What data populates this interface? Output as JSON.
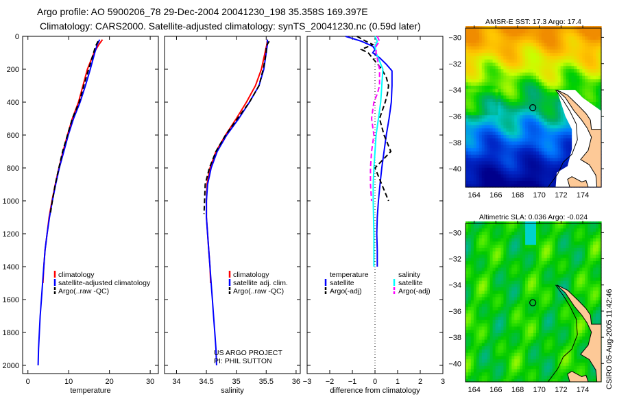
{
  "title_line1": "Argo profile: AO 5900206_78 29-Dec-2004 20041230_198 35.358S 169.397E",
  "title_line2": "Climatology: CARS2000. Satellite-adjusted climatology: synTS_20041230.nc (0.59d later)",
  "side_label": "CSIRO 05-Aug-2005 11:42:46",
  "colors": {
    "climatology": "#ff0000",
    "satellite": "#0000ff",
    "argo": "#000000",
    "sal_satellite": "#00ffff",
    "sal_argo": "#ff00ff"
  },
  "chart_data": [
    {
      "type": "line",
      "xlabel": "temperature",
      "ylabel": "depth",
      "xlim": [
        -1.3,
        32
      ],
      "ylim": [
        2050,
        0
      ],
      "xticks": [
        0,
        10,
        20,
        30
      ],
      "yticks": [
        0,
        200,
        400,
        600,
        800,
        1000,
        1200,
        1400,
        1600,
        1800,
        2000
      ],
      "legend": [
        "climatology",
        "satellite-adjusted climatology",
        "Argo(..raw -QC)"
      ],
      "series": [
        {
          "name": "climatology",
          "style": "solid",
          "color": "#ff0000",
          "depth": [
            20,
            50,
            100,
            200,
            300,
            400,
            500,
            600,
            700,
            800,
            900,
            1000,
            1100,
            1200,
            1300,
            1400,
            1500
          ],
          "values": [
            18.3,
            17.4,
            16.2,
            14.6,
            13.5,
            12.4,
            10.9,
            9.7,
            8.6,
            7.6,
            6.7,
            5.9,
            5.2,
            4.7,
            4.2,
            3.9,
            3.7
          ]
        },
        {
          "name": "satellite-adjusted climatology",
          "style": "solid",
          "color": "#0000ff",
          "depth": [
            20,
            50,
            100,
            200,
            300,
            400,
            500,
            600,
            700,
            800,
            900,
            1000,
            1100,
            1200,
            1300,
            1400,
            1500,
            1600,
            1700,
            1800,
            1900,
            2000
          ],
          "values": [
            17.6,
            17.0,
            16.4,
            15.3,
            14.1,
            12.8,
            11.2,
            9.9,
            8.8,
            7.7,
            6.8,
            6.0,
            5.3,
            4.7,
            4.2,
            3.9,
            3.6,
            3.3,
            3.0,
            2.8,
            2.6,
            2.5
          ]
        },
        {
          "name": "Argo(..raw -QC)",
          "style": "dashed",
          "color": "#000000",
          "depth": [
            30,
            60,
            100,
            200,
            300,
            400,
            500,
            600,
            700,
            800,
            900,
            1000,
            1080
          ],
          "values": [
            17.2,
            16.6,
            16.1,
            14.9,
            13.7,
            12.6,
            10.9,
            9.7,
            8.5,
            7.6,
            6.7,
            6.0,
            5.5
          ]
        }
      ]
    },
    {
      "type": "line",
      "xlabel": "salinity",
      "ylabel": "depth",
      "xlim": [
        33.8,
        36.07
      ],
      "ylim": [
        2050,
        0
      ],
      "xticks": [
        34,
        34.5,
        35,
        35.5,
        36
      ],
      "legend": [
        "climatology",
        "satellite adj. clim.",
        "Argo(..raw -QC)"
      ],
      "annotation": [
        "US ARGO PROJECT",
        "PI: PHIL SUTTON"
      ],
      "series": [
        {
          "name": "climatology",
          "style": "solid",
          "color": "#ff0000",
          "depth": [
            20,
            50,
            100,
            200,
            300,
            400,
            500,
            600,
            700,
            800,
            900,
            1000,
            1100,
            1200,
            1300,
            1400,
            1500
          ],
          "values": [
            35.52,
            35.51,
            35.48,
            35.42,
            35.32,
            35.17,
            35.0,
            34.82,
            34.66,
            34.56,
            34.51,
            34.5,
            34.5,
            34.52,
            34.54,
            34.56,
            34.57
          ]
        },
        {
          "name": "satellite adj. clim.",
          "style": "solid",
          "color": "#0000ff",
          "depth": [
            20,
            50,
            100,
            200,
            300,
            400,
            500,
            600,
            700,
            800,
            900,
            1000,
            1100,
            1200,
            1300,
            1400,
            1500,
            1600,
            1700,
            1800,
            1900,
            2000
          ],
          "values": [
            35.52,
            35.52,
            35.5,
            35.46,
            35.38,
            35.22,
            35.04,
            34.84,
            34.68,
            34.58,
            34.52,
            34.5,
            34.5,
            34.52,
            34.54,
            34.56,
            34.58,
            34.6,
            34.62,
            34.64,
            34.66,
            34.67
          ]
        },
        {
          "name": "Argo(..raw -QC)",
          "style": "dashed",
          "color": "#000000",
          "depth": [
            30,
            60,
            100,
            200,
            300,
            400,
            500,
            600,
            700,
            800,
            900,
            1000,
            1080
          ],
          "values": [
            35.55,
            35.5,
            35.5,
            35.45,
            35.38,
            35.22,
            35.02,
            34.82,
            34.66,
            34.55,
            34.48,
            34.47,
            34.46
          ]
        }
      ]
    },
    {
      "type": "line",
      "xlabel": "difference from climatology",
      "ylabel": "depth",
      "xlim": [
        -3,
        3
      ],
      "ylim": [
        2050,
        0
      ],
      "xticks": [
        -3,
        -2,
        -1,
        0,
        1,
        2,
        3
      ],
      "legend_temperature": [
        "temperature",
        "satellite",
        "Argo(-adj)"
      ],
      "legend_salinity": [
        "salinity",
        "satellite",
        "Argo(-adj)"
      ],
      "series": [
        {
          "name": "temperature satellite",
          "style": "solid",
          "color": "#0000ff",
          "depth": [
            0,
            30,
            60,
            80,
            100,
            130,
            170,
            210,
            300,
            400,
            500,
            600,
            700,
            800,
            900,
            1000,
            1100,
            1200,
            1300,
            1400
          ],
          "values": [
            -1.3,
            -0.6,
            -0.1,
            0.0,
            -0.1,
            0.2,
            0.5,
            0.75,
            0.75,
            0.72,
            0.62,
            0.5,
            0.4,
            0.3,
            0.22,
            0.15,
            0.1,
            0.08,
            0.1,
            0.1
          ]
        },
        {
          "name": "temperature Argo(-adj)",
          "style": "dashed",
          "color": "#000000",
          "depth": [
            0,
            30,
            50,
            80,
            100,
            150,
            200,
            250,
            300,
            350,
            400,
            500,
            600,
            700,
            800,
            900,
            1000
          ],
          "values": [
            -0.8,
            -0.4,
            -0.1,
            -0.6,
            -0.3,
            0.0,
            0.3,
            0.5,
            0.6,
            0.55,
            0.45,
            0.2,
            0.4,
            0.7,
            0.0,
            0.3,
            0.6
          ]
        },
        {
          "name": "salinity satellite",
          "style": "solid",
          "color": "#00ffff",
          "depth": [
            0,
            30,
            60,
            100,
            150,
            200,
            300,
            400,
            500,
            600,
            700,
            800,
            900,
            1000,
            1200,
            1400
          ],
          "values": [
            0.0,
            0.1,
            0.0,
            0.05,
            0.2,
            0.35,
            0.3,
            0.25,
            0.15,
            0.05,
            0.0,
            -0.05,
            -0.08,
            -0.08,
            -0.05,
            -0.05
          ]
        },
        {
          "name": "salinity Argo(-adj)",
          "style": "dashed",
          "color": "#ff00ff",
          "depth": [
            0,
            30,
            60,
            100,
            200,
            300,
            350,
            400,
            500,
            600,
            700,
            800,
            900,
            1000
          ],
          "values": [
            0.1,
            0.2,
            0.05,
            0.05,
            0.2,
            0.2,
            0.1,
            -0.05,
            -0.15,
            -0.05,
            -0.15,
            -0.2,
            -0.2,
            -0.15
          ]
        }
      ]
    },
    {
      "type": "heatmap",
      "title": "AMSR-E SST: 17.3 Argo: 17.4",
      "xlim": [
        163.2,
        175.7
      ],
      "ylim": [
        -41.4,
        -29.3
      ],
      "xticks": [
        164,
        166,
        168,
        170,
        172,
        174
      ],
      "yticks": [
        -30,
        -32,
        -34,
        -36,
        -38,
        -40
      ],
      "marker": {
        "lon": 169.397,
        "lat": -35.358
      }
    },
    {
      "type": "heatmap",
      "title": "Altimetric SLA: 0.036 Argo: -0.024",
      "xlim": [
        163.2,
        175.7
      ],
      "ylim": [
        -41.4,
        -29.3
      ],
      "xticks": [
        164,
        166,
        168,
        170,
        172,
        174
      ],
      "yticks": [
        -30,
        -32,
        -34,
        -36,
        -38,
        -40
      ],
      "marker": {
        "lon": 169.397,
        "lat": -35.358
      }
    }
  ]
}
